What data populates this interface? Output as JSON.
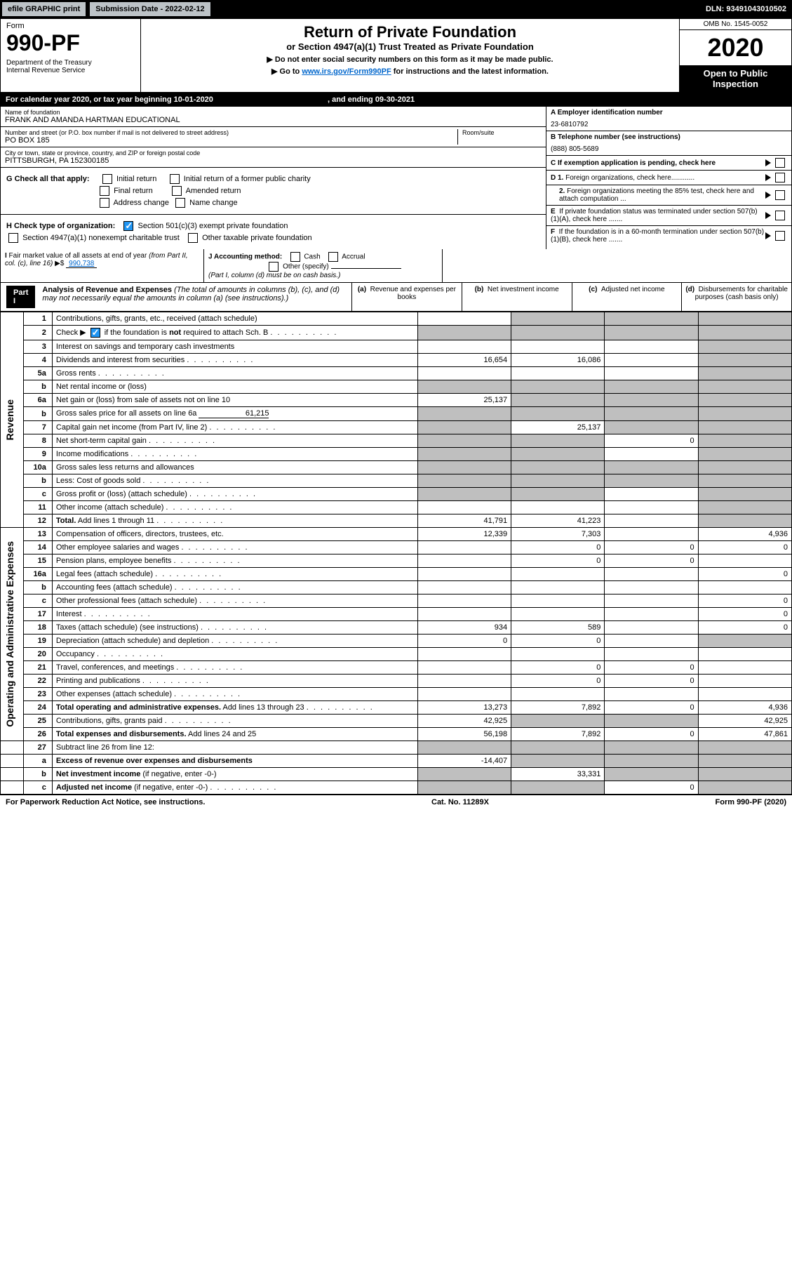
{
  "topbar": {
    "efile": "efile GRAPHIC print",
    "submission": "Submission Date - 2022-02-12",
    "dln": "DLN: 93491043010502"
  },
  "header": {
    "form": "Form",
    "formno": "990-PF",
    "dept": "Department of the Treasury\nInternal Revenue Service",
    "title": "Return of Private Foundation",
    "subtitle": "or Section 4947(a)(1) Trust Treated as Private Foundation",
    "note1": "▶ Do not enter social security numbers on this form as it may be made public.",
    "note2_pre": "▶ Go to ",
    "note2_link": "www.irs.gov/Form990PF",
    "note2_post": " for instructions and the latest information.",
    "omb": "OMB No. 1545-0052",
    "year": "2020",
    "open": "Open to Public Inspection"
  },
  "calyear": {
    "text": "For calendar year 2020, or tax year beginning 10-01-2020",
    "ending": ", and ending 09-30-2021"
  },
  "info": {
    "name_label": "Name of foundation",
    "name": "FRANK AND AMANDA HARTMAN EDUCATIONAL",
    "addr_label": "Number and street (or P.O. box number if mail is not delivered to street address)",
    "addr": "PO BOX 185",
    "room_label": "Room/suite",
    "city_label": "City or town, state or province, country, and ZIP or foreign postal code",
    "city": "PITTSBURGH, PA  152300185",
    "ein_label": "A Employer identification number",
    "ein": "23-6810792",
    "phone_label": "B Telephone number (see instructions)",
    "phone": "(888) 805-5689",
    "c_label": "C If exemption application is pending, check here"
  },
  "g": {
    "label": "G Check all that apply:",
    "initial": "Initial return",
    "final": "Final return",
    "address": "Address change",
    "initial_former": "Initial return of a former public charity",
    "amended": "Amended return",
    "name_change": "Name change"
  },
  "h": {
    "label": "H Check type of organization:",
    "s501": "Section 501(c)(3) exempt private foundation",
    "s4947": "Section 4947(a)(1) nonexempt charitable trust",
    "other_tax": "Other taxable private foundation"
  },
  "i": {
    "label": "I Fair market value of all assets at end of year (from Part II, col. (c), line 16) ▶$",
    "value": "990,738"
  },
  "j": {
    "label": "J Accounting method:",
    "cash": "Cash",
    "accrual": "Accrual",
    "other": "Other (specify)",
    "note": "(Part I, column (d) must be on cash basis.)"
  },
  "d": {
    "d1": "D 1. Foreign organizations, check here............",
    "d2": "2. Foreign organizations meeting the 85% test, check here and attach computation ...",
    "e": "E  If private foundation status was terminated under section 507(b)(1)(A), check here .......",
    "f": "F  If the foundation is in a 60-month termination under section 507(b)(1)(B), check here ......."
  },
  "part1": {
    "label": "Part I",
    "title": "Analysis of Revenue and Expenses",
    "note": "(The total of amounts in columns (b), (c), and (d) may not necessarily equal the amounts in column (a) (see instructions).)",
    "col_a": "(a)   Revenue and expenses per books",
    "col_b": "(b)   Net investment income",
    "col_c": "(c)   Adjusted net income",
    "col_d": "(d)   Disbursements for charitable purposes (cash basis only)"
  },
  "sections": {
    "revenue": "Revenue",
    "opex": "Operating and Administrative Expenses"
  },
  "rows": [
    {
      "n": "1",
      "desc": "Contributions, gifts, grants, etc., received (attach schedule)",
      "a": "",
      "b": "grey",
      "c": "grey",
      "d": "grey",
      "sect": "rev"
    },
    {
      "n": "2",
      "desc": "Check ▶ ☑ if the foundation is <b>not</b> required to attach Sch. B",
      "dots": true,
      "a": "grey",
      "b": "grey",
      "c": "grey",
      "d": "grey",
      "sect": "rev",
      "hascheck": true
    },
    {
      "n": "3",
      "desc": "Interest on savings and temporary cash investments",
      "a": "",
      "b": "",
      "c": "",
      "d": "grey",
      "sect": "rev"
    },
    {
      "n": "4",
      "desc": "Dividends and interest from securities",
      "dots": true,
      "a": "16,654",
      "b": "16,086",
      "c": "",
      "d": "grey",
      "sect": "rev"
    },
    {
      "n": "5a",
      "desc": "Gross rents",
      "dots": true,
      "a": "",
      "b": "",
      "c": "",
      "d": "grey",
      "sect": "rev"
    },
    {
      "n": "b",
      "desc": "Net rental income or (loss)",
      "sub": true,
      "a": "grey",
      "b": "grey",
      "c": "grey",
      "d": "grey",
      "sect": "rev"
    },
    {
      "n": "6a",
      "desc": "Net gain or (loss) from sale of assets not on line 10",
      "a": "25,137",
      "b": "grey",
      "c": "grey",
      "d": "grey",
      "sect": "rev"
    },
    {
      "n": "b",
      "desc": "Gross sales price for all assets on line 6a",
      "sub": true,
      "subval": "61,215",
      "a": "grey",
      "b": "grey",
      "c": "grey",
      "d": "grey",
      "sect": "rev"
    },
    {
      "n": "7",
      "desc": "Capital gain net income (from Part IV, line 2)",
      "dots": true,
      "a": "grey",
      "b": "25,137",
      "c": "grey",
      "d": "grey",
      "sect": "rev"
    },
    {
      "n": "8",
      "desc": "Net short-term capital gain",
      "dots": true,
      "a": "grey",
      "b": "grey",
      "c": "0",
      "d": "grey",
      "sect": "rev"
    },
    {
      "n": "9",
      "desc": "Income modifications",
      "dots": true,
      "a": "grey",
      "b": "grey",
      "c": "",
      "d": "grey",
      "sect": "rev"
    },
    {
      "n": "10a",
      "desc": "Gross sales less returns and allowances",
      "sub": true,
      "a": "grey",
      "b": "grey",
      "c": "grey",
      "d": "grey",
      "sect": "rev"
    },
    {
      "n": "b",
      "desc": "Less: Cost of goods sold",
      "dots": true,
      "sub": true,
      "a": "grey",
      "b": "grey",
      "c": "grey",
      "d": "grey",
      "sect": "rev"
    },
    {
      "n": "c",
      "desc": "Gross profit or (loss) (attach schedule)",
      "dots": true,
      "a": "grey",
      "b": "grey",
      "c": "",
      "d": "grey",
      "sect": "rev"
    },
    {
      "n": "11",
      "desc": "Other income (attach schedule)",
      "dots": true,
      "a": "",
      "b": "",
      "c": "",
      "d": "grey",
      "sect": "rev"
    },
    {
      "n": "12",
      "desc": "<b>Total.</b> Add lines 1 through 11",
      "dots": true,
      "a": "41,791",
      "b": "41,223",
      "c": "",
      "d": "grey",
      "sect": "rev"
    },
    {
      "n": "13",
      "desc": "Compensation of officers, directors, trustees, etc.",
      "a": "12,339",
      "b": "7,303",
      "c": "",
      "d": "4,936",
      "sect": "op"
    },
    {
      "n": "14",
      "desc": "Other employee salaries and wages",
      "dots": true,
      "a": "",
      "b": "0",
      "c": "0",
      "d": "0",
      "sect": "op"
    },
    {
      "n": "15",
      "desc": "Pension plans, employee benefits",
      "dots": true,
      "a": "",
      "b": "0",
      "c": "0",
      "d": "",
      "sect": "op"
    },
    {
      "n": "16a",
      "desc": "Legal fees (attach schedule)",
      "dots": true,
      "a": "",
      "b": "",
      "c": "",
      "d": "0",
      "sect": "op"
    },
    {
      "n": "b",
      "desc": "Accounting fees (attach schedule)",
      "dots": true,
      "a": "",
      "b": "",
      "c": "",
      "d": "",
      "sect": "op"
    },
    {
      "n": "c",
      "desc": "Other professional fees (attach schedule)",
      "dots": true,
      "a": "",
      "b": "",
      "c": "",
      "d": "0",
      "sect": "op"
    },
    {
      "n": "17",
      "desc": "Interest",
      "dots": true,
      "a": "",
      "b": "",
      "c": "",
      "d": "0",
      "sect": "op"
    },
    {
      "n": "18",
      "desc": "Taxes (attach schedule) (see instructions)",
      "dots": true,
      "a": "934",
      "b": "589",
      "c": "",
      "d": "0",
      "sect": "op"
    },
    {
      "n": "19",
      "desc": "Depreciation (attach schedule) and depletion",
      "dots": true,
      "a": "0",
      "b": "0",
      "c": "",
      "d": "grey",
      "sect": "op"
    },
    {
      "n": "20",
      "desc": "Occupancy",
      "dots": true,
      "a": "",
      "b": "",
      "c": "",
      "d": "",
      "sect": "op"
    },
    {
      "n": "21",
      "desc": "Travel, conferences, and meetings",
      "dots": true,
      "a": "",
      "b": "0",
      "c": "0",
      "d": "",
      "sect": "op"
    },
    {
      "n": "22",
      "desc": "Printing and publications",
      "dots": true,
      "a": "",
      "b": "0",
      "c": "0",
      "d": "",
      "sect": "op"
    },
    {
      "n": "23",
      "desc": "Other expenses (attach schedule)",
      "dots": true,
      "a": "",
      "b": "",
      "c": "",
      "d": "",
      "sect": "op"
    },
    {
      "n": "24",
      "desc": "<b>Total operating and administrative expenses.</b> Add lines 13 through 23",
      "dots": true,
      "a": "13,273",
      "b": "7,892",
      "c": "0",
      "d": "4,936",
      "sect": "op"
    },
    {
      "n": "25",
      "desc": "Contributions, gifts, grants paid",
      "dots": true,
      "a": "42,925",
      "b": "grey",
      "c": "grey",
      "d": "42,925",
      "sect": "op"
    },
    {
      "n": "26",
      "desc": "<b>Total expenses and disbursements.</b> Add lines 24 and 25",
      "a": "56,198",
      "b": "7,892",
      "c": "0",
      "d": "47,861",
      "sect": "op"
    },
    {
      "n": "27",
      "desc": "Subtract line 26 from line 12:",
      "a": "grey",
      "b": "grey",
      "c": "grey",
      "d": "grey",
      "sect": "none"
    },
    {
      "n": "a",
      "desc": "<b>Excess of revenue over expenses and disbursements</b>",
      "a": "-14,407",
      "b": "grey",
      "c": "grey",
      "d": "grey",
      "sect": "none"
    },
    {
      "n": "b",
      "desc": "<b>Net investment income</b> (if negative, enter -0-)",
      "a": "grey",
      "b": "33,331",
      "c": "grey",
      "d": "grey",
      "sect": "none"
    },
    {
      "n": "c",
      "desc": "<b>Adjusted net income</b> (if negative, enter -0-)",
      "dots": true,
      "a": "grey",
      "b": "grey",
      "c": "0",
      "d": "grey",
      "sect": "none"
    }
  ],
  "footer": {
    "left": "For Paperwork Reduction Act Notice, see instructions.",
    "mid": "Cat. No. 11289X",
    "right": "Form 990-PF (2020)"
  },
  "colors": {
    "grey_cell": "#bfbfbf",
    "link": "#0066cc",
    "check": "#2196f3"
  }
}
